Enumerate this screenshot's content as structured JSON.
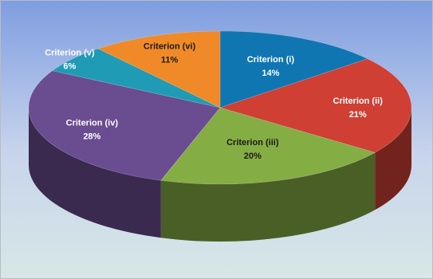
{
  "chart_data": {
    "type": "pie",
    "style": "3d",
    "slices": [
      {
        "label": "Criterion (i)",
        "pct_label": "14%",
        "value": 14,
        "color": "#0f76b2",
        "text_color": "#ffffff"
      },
      {
        "label": "Criterion (ii)",
        "pct_label": "21%",
        "value": 21,
        "color": "#cf3f34",
        "text_color": "#ffffff"
      },
      {
        "label": "Criterion (iii)",
        "pct_label": "20%",
        "value": 20,
        "color": "#84ad43",
        "text_color": "#1a1a1a"
      },
      {
        "label": "Criterion (iv)",
        "pct_label": "28%",
        "value": 28,
        "color": "#6a4c90",
        "text_color": "#ffffff"
      },
      {
        "label": "Criterion (v)",
        "pct_label": "6%",
        "value": 6,
        "color": "#1f9bb5",
        "text_color": "#ffffff"
      },
      {
        "label": "Criterion (vi)",
        "pct_label": "11%",
        "value": 11,
        "color": "#f08a28",
        "text_color": "#1a1a1a"
      }
    ],
    "background_colors": {
      "top": "#7f9ee0",
      "middle": "#c8d4ec",
      "bottom": "#d7e7e6"
    }
  }
}
